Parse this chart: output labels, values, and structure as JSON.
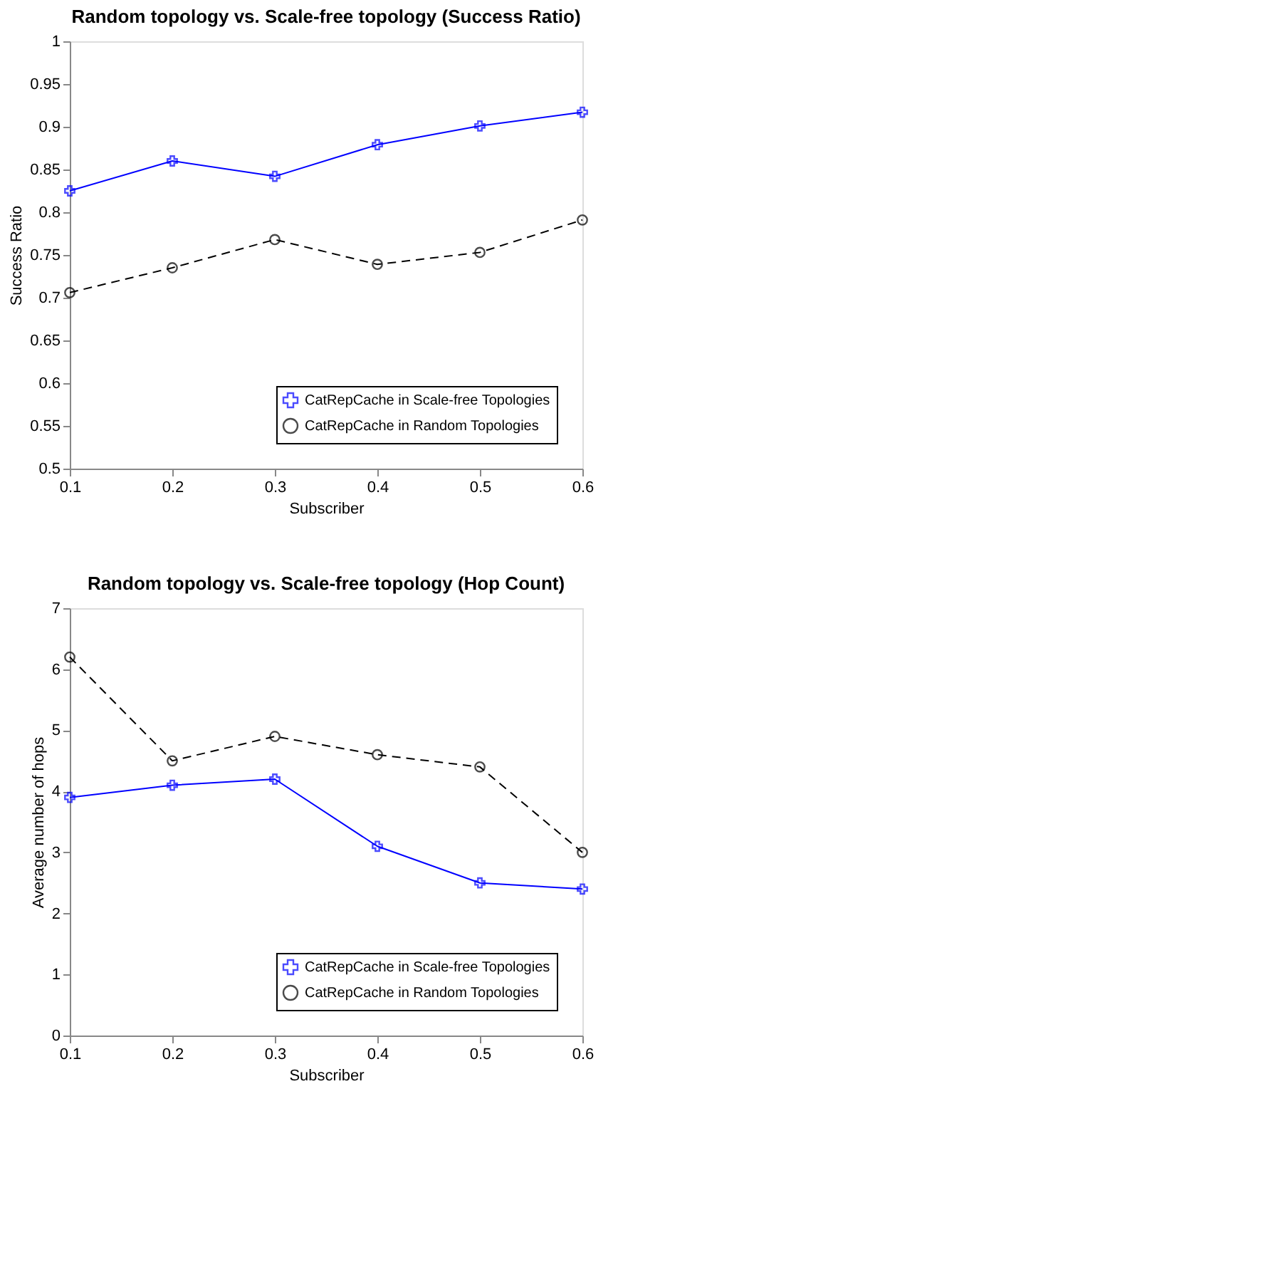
{
  "chart_data": [
    {
      "type": "line",
      "title": "Random topology vs. Scale-free topology (Success Ratio)",
      "xlabel": "Subscriber",
      "ylabel": "Success Ratio",
      "x": [
        0.1,
        0.2,
        0.3,
        0.4,
        0.5,
        0.6
      ],
      "series": [
        {
          "name": "CatRepCache in Scale-free Topologies",
          "color": "#0000ff",
          "marker": "cross",
          "line_style": "solid",
          "values": [
            0.825,
            0.86,
            0.842,
            0.879,
            0.901,
            0.917
          ]
        },
        {
          "name": "CatRepCache in Random Topologies",
          "color": "#000000",
          "marker": "circle",
          "line_style": "dashed",
          "values": [
            0.706,
            0.735,
            0.768,
            0.739,
            0.753,
            0.791
          ]
        }
      ],
      "xlim": [
        0.1,
        0.6
      ],
      "xticks": [
        0.1,
        0.2,
        0.3,
        0.4,
        0.5,
        0.6
      ],
      "ylim": [
        0.5,
        1
      ],
      "yticks": [
        0.5,
        0.55,
        0.6,
        0.65,
        0.7,
        0.75,
        0.8,
        0.85,
        0.9,
        0.95,
        1
      ],
      "grid": false,
      "legend": "bottom right"
    },
    {
      "type": "line",
      "title": "Random topology vs. Scale-free topology (Hop Count)",
      "xlabel": "Subscriber",
      "ylabel": "Average number of hops",
      "x": [
        0.1,
        0.2,
        0.3,
        0.4,
        0.5,
        0.6
      ],
      "series": [
        {
          "name": "CatRepCache in Scale-free Topologies",
          "color": "#0000ff",
          "marker": "cross",
          "line_style": "solid",
          "values": [
            3.9,
            4.1,
            4.2,
            3.1,
            2.5,
            2.4
          ]
        },
        {
          "name": "CatRepCache in Random Topologies",
          "color": "#000000",
          "marker": "circle",
          "line_style": "dashed",
          "values": [
            6.2,
            4.5,
            4.9,
            4.6,
            4.4,
            3.0
          ]
        }
      ],
      "xlim": [
        0.1,
        0.6
      ],
      "xticks": [
        0.1,
        0.2,
        0.3,
        0.4,
        0.5,
        0.6
      ],
      "ylim": [
        0,
        7
      ],
      "yticks": [
        0,
        1,
        2,
        3,
        4,
        5,
        6,
        7
      ],
      "grid": false,
      "legend": "bottom right"
    }
  ]
}
